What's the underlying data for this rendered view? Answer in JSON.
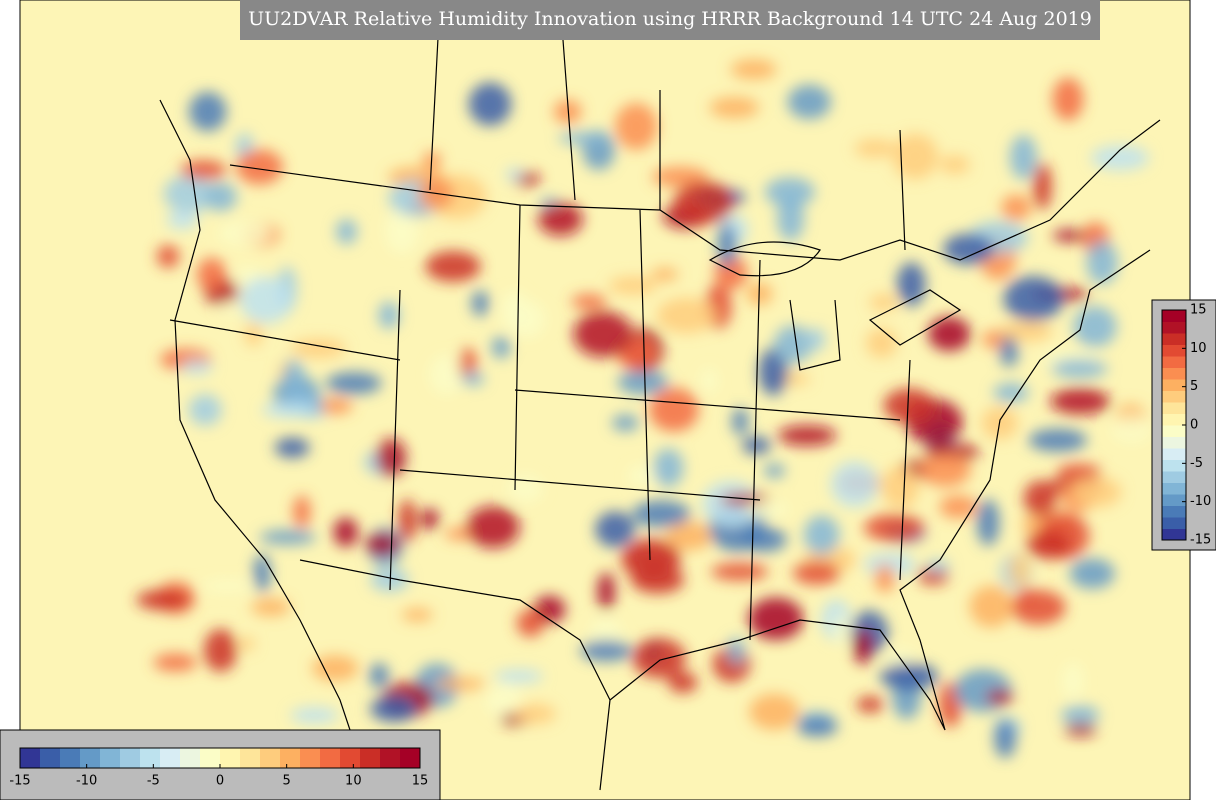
{
  "title": "UU2DVAR Relative Humidity Innovation using HRRR Background 14 UTC 24 Aug 2019",
  "colorbar": {
    "range": [
      -15,
      15
    ],
    "ticks": [
      -15,
      -10,
      -5,
      0,
      5,
      10,
      15
    ],
    "colors": [
      "#313695",
      "#3a5ea8",
      "#4a7bb7",
      "#649ac7",
      "#81b5d6",
      "#9fcbe2",
      "#bde2ee",
      "#d8edf4",
      "#ecf6e0",
      "#fbfdc7",
      "#fff5b0",
      "#fee59a",
      "#fecc7d",
      "#fdb061",
      "#fa8e51",
      "#f26b42",
      "#e24a32",
      "#ca2e26",
      "#b11226",
      "#a50026"
    ]
  }
}
